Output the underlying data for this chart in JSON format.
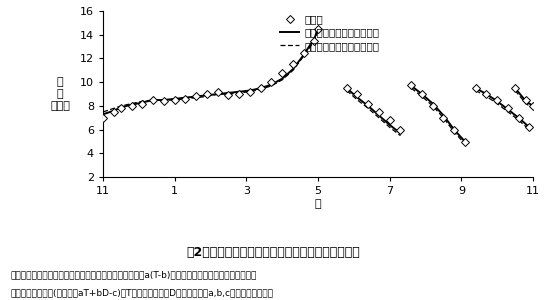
{
  "ylabel_lines": [
    "葉",
    "数",
    "（枚）"
  ],
  "xlabel": "月",
  "title": "図2　各茶期全葉数における推定値と実測値の推移",
  "caption_line1": "推定値１は日平均気温のみを用いた推定値　「推定式：a(T-b)」、推定値２は日平均気温と日長時",
  "caption_line2": "間を用いた推定値(推定式：aT+bD-c)、T：日平均気温、D：日長時間、a,b,c：パラメーター値",
  "legend_obs": "実測値",
  "legend_est2": "・推定値２（気温＋日長）",
  "legend_est1": "・推定値１　（気温のみ）",
  "xlim": [
    11,
    23
  ],
  "ylim": [
    2,
    16
  ],
  "xticks": [
    11,
    13,
    15,
    17,
    19,
    21,
    23
  ],
  "xticklabels": [
    "11",
    "1",
    "3",
    "5",
    "7",
    "9",
    "11"
  ],
  "yticks": [
    2,
    4,
    6,
    8,
    10,
    12,
    14,
    16
  ],
  "obs_segments": [
    {
      "x": [
        11.0,
        11.3,
        11.5,
        11.8,
        12.1,
        12.4,
        12.7,
        13.0,
        13.3,
        13.6,
        13.9,
        14.2,
        14.5,
        14.8,
        15.1,
        15.4,
        15.7,
        16.0,
        16.3,
        16.6,
        16.9,
        17.0
      ],
      "y": [
        7.0,
        7.5,
        7.8,
        8.0,
        8.2,
        8.5,
        8.4,
        8.5,
        8.6,
        8.8,
        9.0,
        9.2,
        8.9,
        9.0,
        9.2,
        9.5,
        10.0,
        10.8,
        11.5,
        12.5,
        13.5,
        14.5
      ]
    },
    {
      "x": [
        17.8,
        18.1,
        18.4,
        18.7,
        19.0,
        19.3
      ],
      "y": [
        9.5,
        9.0,
        8.2,
        7.5,
        6.8,
        6.0
      ]
    },
    {
      "x": [
        19.6,
        19.9,
        20.2,
        20.5,
        20.8,
        21.1
      ],
      "y": [
        9.8,
        9.0,
        8.0,
        7.0,
        6.0,
        5.0
      ]
    },
    {
      "x": [
        21.4,
        21.7,
        22.0,
        22.3,
        22.6,
        22.9
      ],
      "y": [
        9.5,
        9.0,
        8.5,
        7.8,
        7.0,
        6.2
      ]
    },
    {
      "x": [
        22.5,
        22.8,
        23.0
      ],
      "y": [
        9.5,
        8.5,
        8.0
      ]
    }
  ],
  "est1_segments": [
    {
      "x": [
        11.0,
        11.3,
        11.5,
        11.8,
        12.1,
        12.4,
        12.7,
        13.0,
        13.3,
        13.6,
        13.9,
        14.2,
        14.5,
        14.8,
        15.1,
        15.4,
        15.7,
        16.0,
        16.3,
        16.6,
        16.9,
        17.0
      ],
      "y": [
        7.5,
        7.8,
        8.0,
        8.2,
        8.4,
        8.5,
        8.5,
        8.5,
        8.6,
        8.7,
        8.8,
        9.0,
        9.0,
        9.1,
        9.2,
        9.4,
        9.7,
        10.2,
        11.0,
        12.2,
        13.5,
        14.3
      ]
    },
    {
      "x": [
        17.8,
        18.1,
        18.4,
        18.7,
        19.0,
        19.3
      ],
      "y": [
        9.3,
        8.5,
        7.8,
        7.0,
        6.2,
        5.5
      ]
    },
    {
      "x": [
        19.6,
        19.9,
        20.2,
        20.5,
        20.8,
        21.1
      ],
      "y": [
        9.5,
        8.8,
        8.0,
        7.0,
        5.8,
        4.8
      ]
    },
    {
      "x": [
        21.4,
        21.7,
        22.0,
        22.3,
        22.6,
        22.9
      ],
      "y": [
        9.3,
        8.8,
        8.2,
        7.5,
        6.8,
        6.0
      ]
    },
    {
      "x": [
        22.5,
        22.8,
        23.0
      ],
      "y": [
        9.3,
        8.2,
        7.8
      ]
    }
  ],
  "est2_segments": [
    {
      "x": [
        11.0,
        11.3,
        11.5,
        11.8,
        12.1,
        12.4,
        12.7,
        13.0,
        13.3,
        13.6,
        13.9,
        14.2,
        14.5,
        14.8,
        15.1,
        15.4,
        15.7,
        16.0,
        16.3,
        16.6,
        16.9,
        17.0
      ],
      "y": [
        7.3,
        7.6,
        7.9,
        8.1,
        8.3,
        8.5,
        8.5,
        8.6,
        8.7,
        8.8,
        8.9,
        9.0,
        9.1,
        9.2,
        9.3,
        9.5,
        9.8,
        10.3,
        11.1,
        12.3,
        13.7,
        14.5
      ]
    },
    {
      "x": [
        17.8,
        18.1,
        18.4,
        18.7,
        19.0,
        19.3
      ],
      "y": [
        9.5,
        8.7,
        8.0,
        7.2,
        6.4,
        5.7
      ]
    },
    {
      "x": [
        19.6,
        19.9,
        20.2,
        20.5,
        20.8,
        21.1
      ],
      "y": [
        9.7,
        9.0,
        8.2,
        7.2,
        6.0,
        5.0
      ]
    },
    {
      "x": [
        21.4,
        21.7,
        22.0,
        22.3,
        22.6,
        22.9
      ],
      "y": [
        9.5,
        9.0,
        8.4,
        7.7,
        7.0,
        6.2
      ]
    },
    {
      "x": [
        22.5,
        22.8,
        23.0
      ],
      "y": [
        9.5,
        8.4,
        8.0
      ]
    }
  ],
  "bg_color": "#ffffff",
  "font_size_axis": 8,
  "font_size_legend": 7.5,
  "font_size_title": 9,
  "font_size_caption": 6.5
}
